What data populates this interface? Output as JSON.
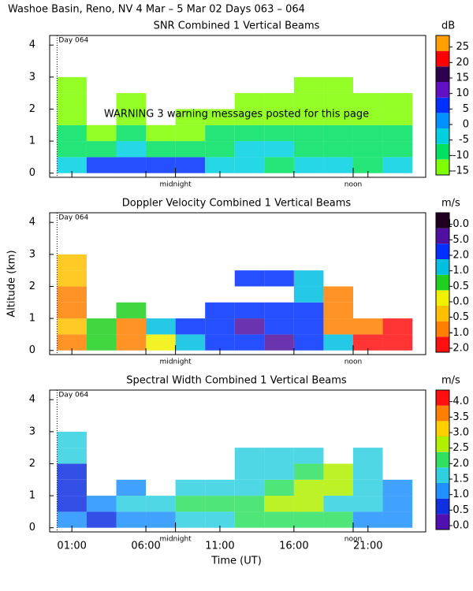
{
  "title": "Washoe Basin, Reno, NV   4 Mar –  5 Mar 02 Days 063 – 064",
  "chart_data": [
    {
      "type": "heatmap",
      "title": "SNR Combined 1 Vertical Beams",
      "unit": "dB",
      "warning": "WARNING  3 warning messages posted for this page",
      "day_marker": {
        "x": 0,
        "label": "Day 064"
      },
      "annotations": [
        {
          "text": "midnight",
          "x": 8
        },
        {
          "text": "noon",
          "x": 20
        }
      ],
      "xlim": [
        -0.5,
        24.9
      ],
      "xticks": [
        1,
        6,
        11,
        16,
        21
      ],
      "xtick_labels": false,
      "ylim": [
        -0.13,
        4.3
      ],
      "yticks": [
        0,
        1,
        2,
        3,
        4
      ],
      "x": [
        0,
        2,
        4,
        6,
        8,
        10,
        12,
        14,
        16,
        18,
        20,
        22,
        24
      ],
      "y": [
        0,
        0.5,
        1,
        1.5,
        2,
        2.5,
        3
      ],
      "z": [
        [
          -5,
          5,
          5,
          5,
          5,
          -5,
          -5,
          -10,
          -5,
          -5,
          -10,
          -5
        ],
        [
          -10,
          -10,
          -5,
          -10,
          -10,
          -10,
          -5,
          -5,
          -10,
          -10,
          -10,
          -10
        ],
        [
          -10,
          -15,
          -10,
          -15,
          -15,
          -10,
          -10,
          -10,
          -10,
          -10,
          -10,
          -10
        ],
        [
          -15,
          null,
          -15,
          null,
          -15,
          -15,
          -15,
          -15,
          -15,
          -15,
          -15,
          -15
        ],
        [
          -15,
          null,
          -15,
          null,
          null,
          null,
          -15,
          -15,
          -15,
          -15,
          -15,
          -15
        ],
        [
          -15,
          null,
          null,
          null,
          null,
          null,
          null,
          null,
          -15,
          -15,
          null,
          null
        ]
      ],
      "colorbar": {
        "ticks": [
          -15,
          -10,
          -5,
          0,
          5,
          10,
          15,
          20,
          25
        ],
        "colors": [
          "#80ff00",
          "#00e060",
          "#00d0e0",
          "#0090ff",
          "#0030ff",
          "#6010c0",
          "#300050",
          "#ff0000",
          "#ffa000"
        ]
      }
    },
    {
      "type": "heatmap",
      "title": "Doppler Velocity Combined 1 Vertical Beams",
      "unit": "m/s",
      "ylabel": "Altitude (km)",
      "day_marker": {
        "x": 0,
        "label": "Day 064"
      },
      "annotations": [
        {
          "text": "midnight",
          "x": 8
        },
        {
          "text": "noon",
          "x": 20
        }
      ],
      "xlim": [
        -0.5,
        24.9
      ],
      "xticks": [
        1,
        6,
        11,
        16,
        21
      ],
      "xtick_labels": false,
      "ylim": [
        -0.13,
        4.3
      ],
      "yticks": [
        0,
        1,
        2,
        3,
        4
      ],
      "x": [
        0,
        2,
        4,
        6,
        8,
        10,
        12,
        14,
        16,
        18,
        20,
        22,
        24
      ],
      "y": [
        0,
        0.5,
        1,
        1.5,
        2,
        2.5,
        3
      ],
      "z": [
        [
          -1.0,
          0.5,
          -1.0,
          0.0,
          1.0,
          2.0,
          2.0,
          5.0,
          2.0,
          1.0,
          -2.0,
          -2.0
        ],
        [
          -0.5,
          0.5,
          -1.0,
          1.0,
          2.0,
          2.0,
          5.0,
          2.0,
          2.0,
          -1.0,
          -1.0,
          -2.0
        ],
        [
          -1.0,
          null,
          0.5,
          null,
          null,
          2.0,
          2.0,
          2.0,
          2.0,
          -1.0,
          null,
          null
        ],
        [
          -1.0,
          null,
          null,
          null,
          null,
          null,
          null,
          null,
          1.0,
          -1.0,
          null,
          null
        ],
        [
          -0.5,
          null,
          null,
          null,
          null,
          null,
          2.0,
          2.0,
          1.0,
          null,
          null,
          null
        ],
        [
          -0.5,
          null,
          null,
          null,
          null,
          null,
          null,
          null,
          null,
          null,
          null,
          null
        ]
      ],
      "colorbar": {
        "ticks": [
          {
            "value": -2,
            "label": "-2.0"
          },
          {
            "value": -1,
            "label": "-1.0"
          },
          {
            "value": -0.5,
            "label": "-0.5"
          },
          {
            "value": 0,
            "label": "0.0"
          },
          {
            "value": 0.5,
            "label": "0.5"
          },
          {
            "value": 1,
            "label": "1.0"
          },
          {
            "value": 2,
            "label": "2.0"
          },
          {
            "value": 5,
            "label": "5.0"
          },
          {
            "value": 10,
            "label": "10.0"
          }
        ],
        "colors": [
          "#ff1010",
          "#ff8000",
          "#ffc000",
          "#f0f000",
          "#20d020",
          "#00c0e0",
          "#0030ff",
          "#5010a0",
          "#200020"
        ]
      }
    },
    {
      "type": "heatmap",
      "title": "Spectral Width Combined 1 Vertical Beams",
      "unit": "m/s",
      "xlabel": "Time (UT)",
      "day_marker": {
        "x": 0,
        "label": "Day 064"
      },
      "annotations": [
        {
          "text": "midnight",
          "x": 8
        },
        {
          "text": "noon",
          "x": 20
        }
      ],
      "xlim": [
        -0.5,
        24.9
      ],
      "xticks": [
        {
          "value": 1,
          "label": "01:00"
        },
        {
          "value": 6,
          "label": "06:00"
        },
        {
          "value": 11,
          "label": "11:00"
        },
        {
          "value": 16,
          "label": "16:00"
        },
        {
          "value": 21,
          "label": "21:00"
        }
      ],
      "ylim": [
        -0.13,
        4.3
      ],
      "yticks": [
        0,
        1,
        2,
        3,
        4
      ],
      "x": [
        0,
        2,
        4,
        6,
        8,
        10,
        12,
        14,
        16,
        18,
        20,
        22,
        24
      ],
      "y": [
        0,
        0.5,
        1,
        1.5,
        2,
        2.5,
        3
      ],
      "z": [
        [
          1.0,
          0.5,
          1.0,
          1.0,
          1.5,
          1.5,
          2.0,
          2.0,
          2.0,
          2.0,
          1.0,
          1.0
        ],
        [
          0.5,
          1.0,
          1.5,
          1.5,
          2.0,
          2.0,
          2.0,
          2.5,
          2.5,
          1.5,
          1.5,
          1.0
        ],
        [
          0.5,
          null,
          1.0,
          null,
          1.5,
          1.5,
          1.5,
          2.0,
          2.5,
          2.5,
          1.5,
          1.0
        ],
        [
          0.5,
          null,
          null,
          null,
          null,
          null,
          1.5,
          1.5,
          2.0,
          2.5,
          1.5,
          null
        ],
        [
          1.5,
          null,
          null,
          null,
          null,
          null,
          1.5,
          1.5,
          1.5,
          null,
          1.5,
          null
        ],
        [
          1.5,
          null,
          null,
          null,
          null,
          null,
          null,
          null,
          null,
          null,
          null,
          null
        ]
      ],
      "colorbar": {
        "ticks": [
          {
            "value": 0,
            "label": "0.0"
          },
          {
            "value": 0.5,
            "label": "0.5"
          },
          {
            "value": 1,
            "label": "1.0"
          },
          {
            "value": 1.5,
            "label": "1.5"
          },
          {
            "value": 2,
            "label": "2.0"
          },
          {
            "value": 2.5,
            "label": "2.5"
          },
          {
            "value": 3,
            "label": "3.0"
          },
          {
            "value": 3.5,
            "label": "3.5"
          },
          {
            "value": 4,
            "label": "4.0"
          }
        ],
        "colors": [
          "#5010b0",
          "#1030e0",
          "#2090ff",
          "#30d0e0",
          "#30e060",
          "#b0f000",
          "#ffd000",
          "#ff8000",
          "#ff1010"
        ]
      }
    }
  ]
}
